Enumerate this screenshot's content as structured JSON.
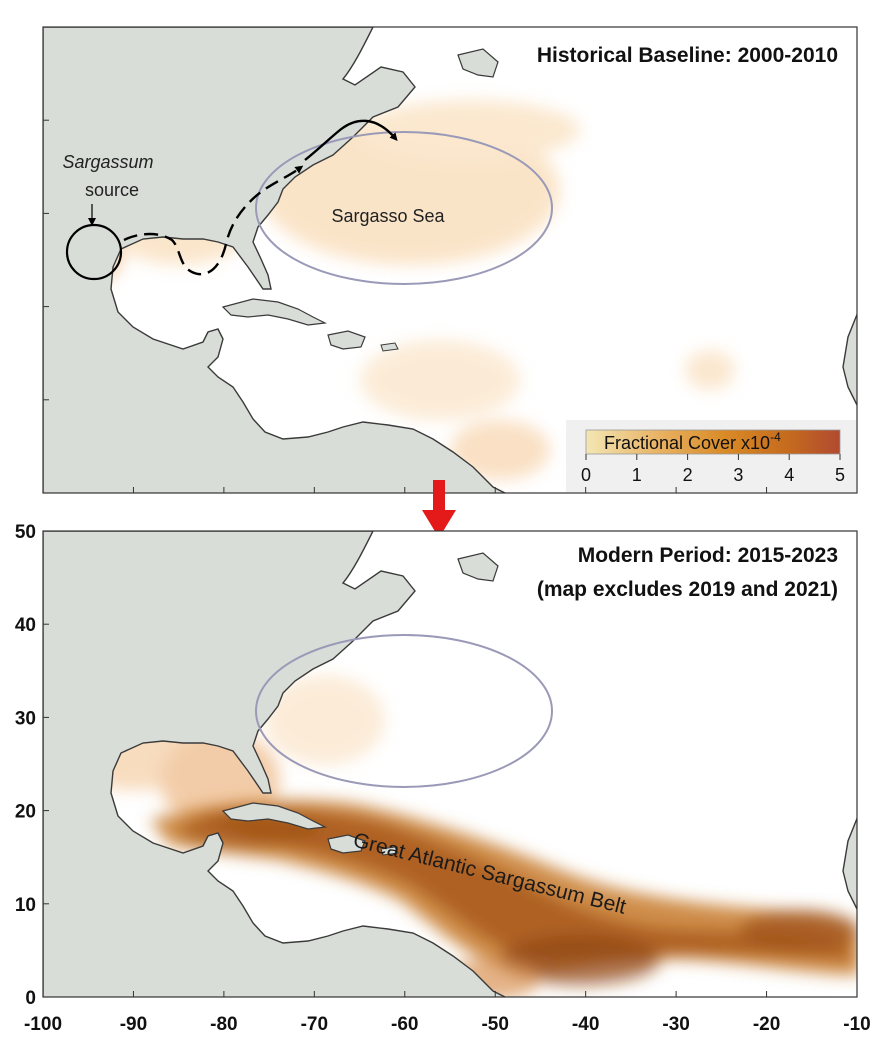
{
  "panel_top": {
    "title": "Historical Baseline: 2000-2010",
    "source_label_italic": "Sargassum",
    "source_label": "source",
    "sea_label": "Sargasso Sea"
  },
  "panel_bottom": {
    "title_line1": "Modern Period: 2015-2023",
    "title_line2": "(map excludes 2019 and 2021)",
    "belt_label": "Great Atlantic Sargassum Belt"
  },
  "colorbar": {
    "label": "Fractional Cover x10",
    "exponent": "-4",
    "ticks": [
      "0",
      "1",
      "2",
      "3",
      "4",
      "5"
    ],
    "colors": [
      "#f3e7b4",
      "#e8b060",
      "#d98a26",
      "#c46a1e",
      "#b14a30"
    ]
  },
  "axes": {
    "x_ticks": [
      "-100",
      "-90",
      "-80",
      "-70",
      "-60",
      "-50",
      "-40",
      "-30",
      "-20",
      "-10"
    ],
    "y_ticks": [
      "0",
      "10",
      "20",
      "30",
      "40",
      "50"
    ]
  },
  "colors": {
    "land": "#d9ddd8",
    "coast": "#3a3a3a",
    "ellipse": "#9a9ab8",
    "arrow_red": "#e41a1a"
  }
}
